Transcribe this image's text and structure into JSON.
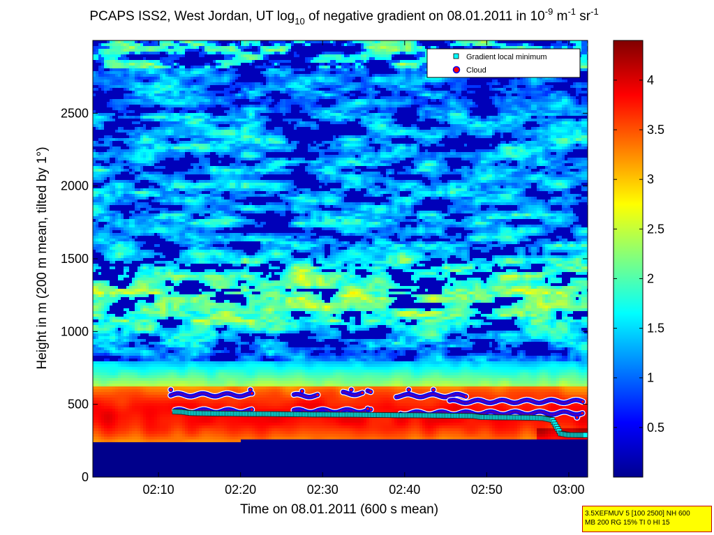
{
  "chart_data": {
    "type": "heatmap",
    "title": {
      "prefix": "PCAPS ISS2, West Jordan, UT log",
      "sub": "10",
      "middle": " of negative gradient on 08.01.2011 in 10",
      "sup1": "-9",
      "unit1": " m",
      "sup2": "-1",
      "unit2": " sr",
      "sup3": "-1"
    },
    "xlabel": "Time on 08.01.2011 (600 s mean)",
    "ylabel": "Height in m (200 m mean, tilted by 1°)",
    "x_ticks": [
      "02:10",
      "02:20",
      "02:30",
      "02:40",
      "02:50",
      "03:00"
    ],
    "x_tick_minutes": [
      130,
      140,
      150,
      160,
      170,
      180
    ],
    "xlim_minutes": [
      122,
      182.3
    ],
    "y_ticks": [
      0,
      500,
      1000,
      1500,
      2000,
      2500
    ],
    "ylim": [
      0,
      3000
    ],
    "colorbar": {
      "colormap": "jet",
      "range": [
        0,
        4.4
      ],
      "ticks": [
        0.5,
        1,
        1.5,
        2,
        2.5,
        3,
        3.5,
        4
      ],
      "tick_labels": [
        "0.5",
        "1",
        "1.5",
        "2",
        "2.5",
        "3",
        "3.5",
        "4"
      ]
    },
    "legend": {
      "placement": "top-right",
      "entries": [
        {
          "label": "Gradient local minimum",
          "marker": "square",
          "color": "#00ffff"
        },
        {
          "label": "Cloud",
          "marker": "circle",
          "color": "#ff0000",
          "edge": "#0000ff"
        }
      ]
    },
    "series": [
      {
        "name": "Gradient local minimum",
        "points": [
          [
            132,
            450
          ],
          [
            133,
            448
          ],
          [
            134,
            440
          ],
          [
            135.5,
            438
          ],
          [
            137,
            437
          ],
          [
            138.5,
            436
          ],
          [
            140,
            435
          ],
          [
            141.5,
            434
          ],
          [
            143,
            434
          ],
          [
            144.5,
            433
          ],
          [
            146,
            432
          ],
          [
            147.5,
            431
          ],
          [
            149,
            430
          ],
          [
            150.5,
            430
          ],
          [
            152,
            429
          ],
          [
            153.5,
            429
          ],
          [
            155,
            428
          ],
          [
            156.5,
            427
          ],
          [
            158,
            426
          ],
          [
            159.5,
            425
          ],
          [
            161,
            425
          ],
          [
            162.5,
            424
          ],
          [
            164,
            423
          ],
          [
            165.5,
            422
          ],
          [
            167,
            421
          ],
          [
            168.5,
            420
          ],
          [
            169.5,
            412
          ],
          [
            171,
            411
          ],
          [
            172.5,
            410
          ],
          [
            174,
            409
          ],
          [
            175.5,
            408
          ],
          [
            177,
            405
          ],
          [
            178,
            393
          ],
          [
            179,
            300
          ],
          [
            180,
            290
          ],
          [
            181,
            289
          ],
          [
            182,
            289
          ]
        ]
      },
      {
        "name": "Cloud",
        "rows": [
          {
            "x_range": [
              131.5,
              141.5
            ],
            "base": 565,
            "top_points": [
              [
                131.5,
                600
              ],
              [
                141.2,
                600
              ]
            ]
          },
          {
            "x_range": [
              146.5,
              149.5
            ],
            "base": 560,
            "top_points": [
              [
                147.5,
                590
              ]
            ]
          },
          {
            "x_range": [
              152.5,
              155
            ],
            "base": 575,
            "top_points": [
              [
                153.5,
                600
              ]
            ]
          },
          {
            "x_range": [
              155.5,
              156
            ],
            "base": 590,
            "top_points": []
          },
          {
            "x_range": [
              159,
              167.5
            ],
            "base": 560,
            "top_points": [
              [
                160.5,
                600
              ],
              [
                163.5,
                600
              ]
            ]
          },
          {
            "x_range": [
              165.5,
              181.8
            ],
            "base": 520,
            "top_points": []
          },
          {
            "x_range": [
              132,
              141.5
            ],
            "base": 455,
            "top_points": []
          },
          {
            "x_range": [
              146.5,
              156
            ],
            "base": 455,
            "top_points": [
              [
                155.5,
                470
              ]
            ]
          },
          {
            "x_range": [
              159.5,
              181.8
            ],
            "base": 440,
            "top_points": [
              [
                181,
                410
              ]
            ]
          }
        ]
      }
    ],
    "field_description": {
      "surface_layer_top": 620,
      "bottom_band_top": 240
    }
  },
  "stamp": {
    "line1": "3.5XEFMUV 5 [100 2500] NH 600",
    "line2": "MB 200 RG 15% TI 0 HI 15"
  },
  "colors": {
    "axis": "#000000",
    "background": "#ffffff",
    "stamp_bg": "#ffff00",
    "stamp_border": "#c00000"
  }
}
